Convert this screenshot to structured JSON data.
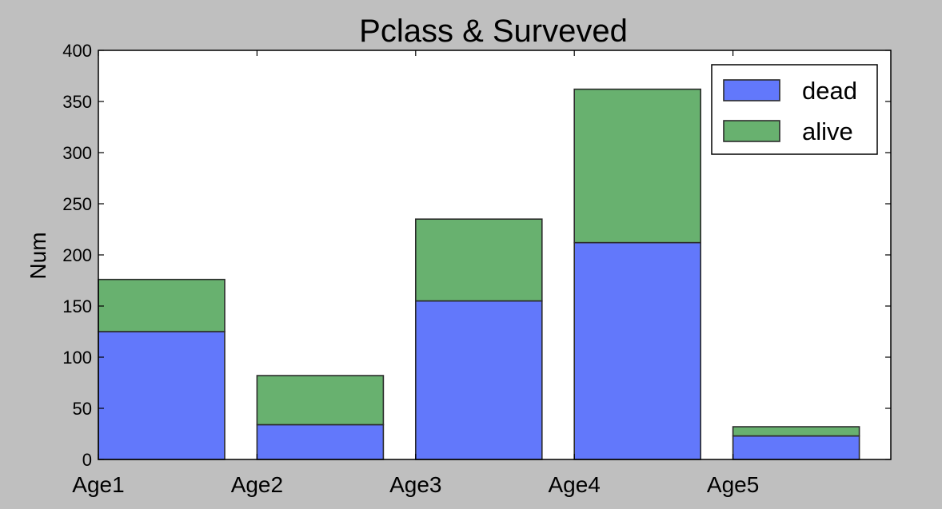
{
  "chart_data": {
    "type": "bar",
    "stacked": true,
    "title": "Pclass & Surveved",
    "xlabel": "",
    "ylabel": "Num",
    "categories": [
      "Age1",
      "Age2",
      "Age3",
      "Age4",
      "Age5"
    ],
    "series": [
      {
        "name": "dead",
        "values": [
          125,
          34,
          155,
          212,
          23
        ],
        "color": "#6278fb"
      },
      {
        "name": "alive",
        "values": [
          51,
          48,
          80,
          150,
          9
        ],
        "color": "#68b16f"
      }
    ],
    "ylim": [
      0,
      400
    ],
    "yticks": [
      0,
      50,
      100,
      150,
      200,
      250,
      300,
      350,
      400
    ],
    "grid": false,
    "legend_position": "top-right",
    "colors": {
      "background": "#bfbfbf",
      "plot_area": "#ffffff",
      "edge": "#2b2b2b"
    }
  }
}
